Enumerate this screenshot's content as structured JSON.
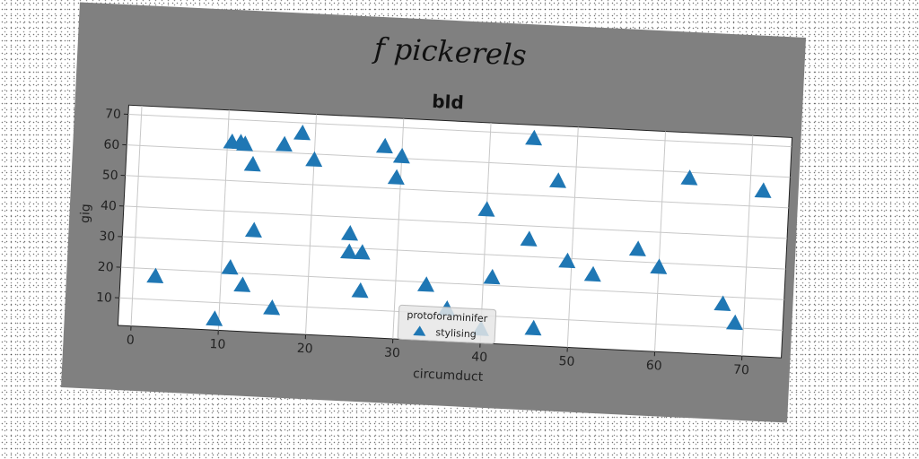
{
  "figure_title": "f pickerels",
  "chart_data": {
    "type": "scatter",
    "title": "bld",
    "xlabel": "circumduct",
    "ylabel": "gig",
    "xlim": [
      -1.5,
      74.5
    ],
    "ylim": [
      1,
      73
    ],
    "xticks": [
      0,
      10,
      20,
      30,
      40,
      50,
      60,
      70
    ],
    "yticks": [
      10,
      20,
      30,
      40,
      50,
      60,
      70
    ],
    "grid": true,
    "legend": {
      "title": "protoforaminifer",
      "placement": "lower-center"
    },
    "series": [
      {
        "name": "stylising",
        "marker": "triangle",
        "color": "#1f77b4",
        "points": [
          [
            2.5,
            17.5
          ],
          [
            9.5,
            4.5
          ],
          [
            10.5,
            62.5
          ],
          [
            11,
            21.5
          ],
          [
            11.5,
            62.5
          ],
          [
            12,
            62
          ],
          [
            12.5,
            16
          ],
          [
            13,
            55.5
          ],
          [
            13.5,
            34
          ],
          [
            16,
            9
          ],
          [
            16.5,
            62.5
          ],
          [
            18.5,
            66.5
          ],
          [
            20,
            58
          ],
          [
            24.5,
            34.5
          ],
          [
            24.5,
            28.5
          ],
          [
            26,
            28.5
          ],
          [
            26,
            16
          ],
          [
            28,
            63.5
          ],
          [
            29.5,
            53.5
          ],
          [
            30,
            60.5
          ],
          [
            33.5,
            19
          ],
          [
            36,
            11.5
          ],
          [
            40,
            5.5
          ],
          [
            40,
            44.5
          ],
          [
            41,
            22.5
          ],
          [
            45,
            68.5
          ],
          [
            45,
            35.5
          ],
          [
            46,
            6.5
          ],
          [
            48,
            55
          ],
          [
            49.5,
            29
          ],
          [
            52.5,
            25
          ],
          [
            57.5,
            34
          ],
          [
            60,
            28.5
          ],
          [
            63,
            58
          ],
          [
            67.5,
            17.5
          ],
          [
            69,
            11.5
          ],
          [
            71.5,
            55
          ]
        ]
      }
    ]
  }
}
